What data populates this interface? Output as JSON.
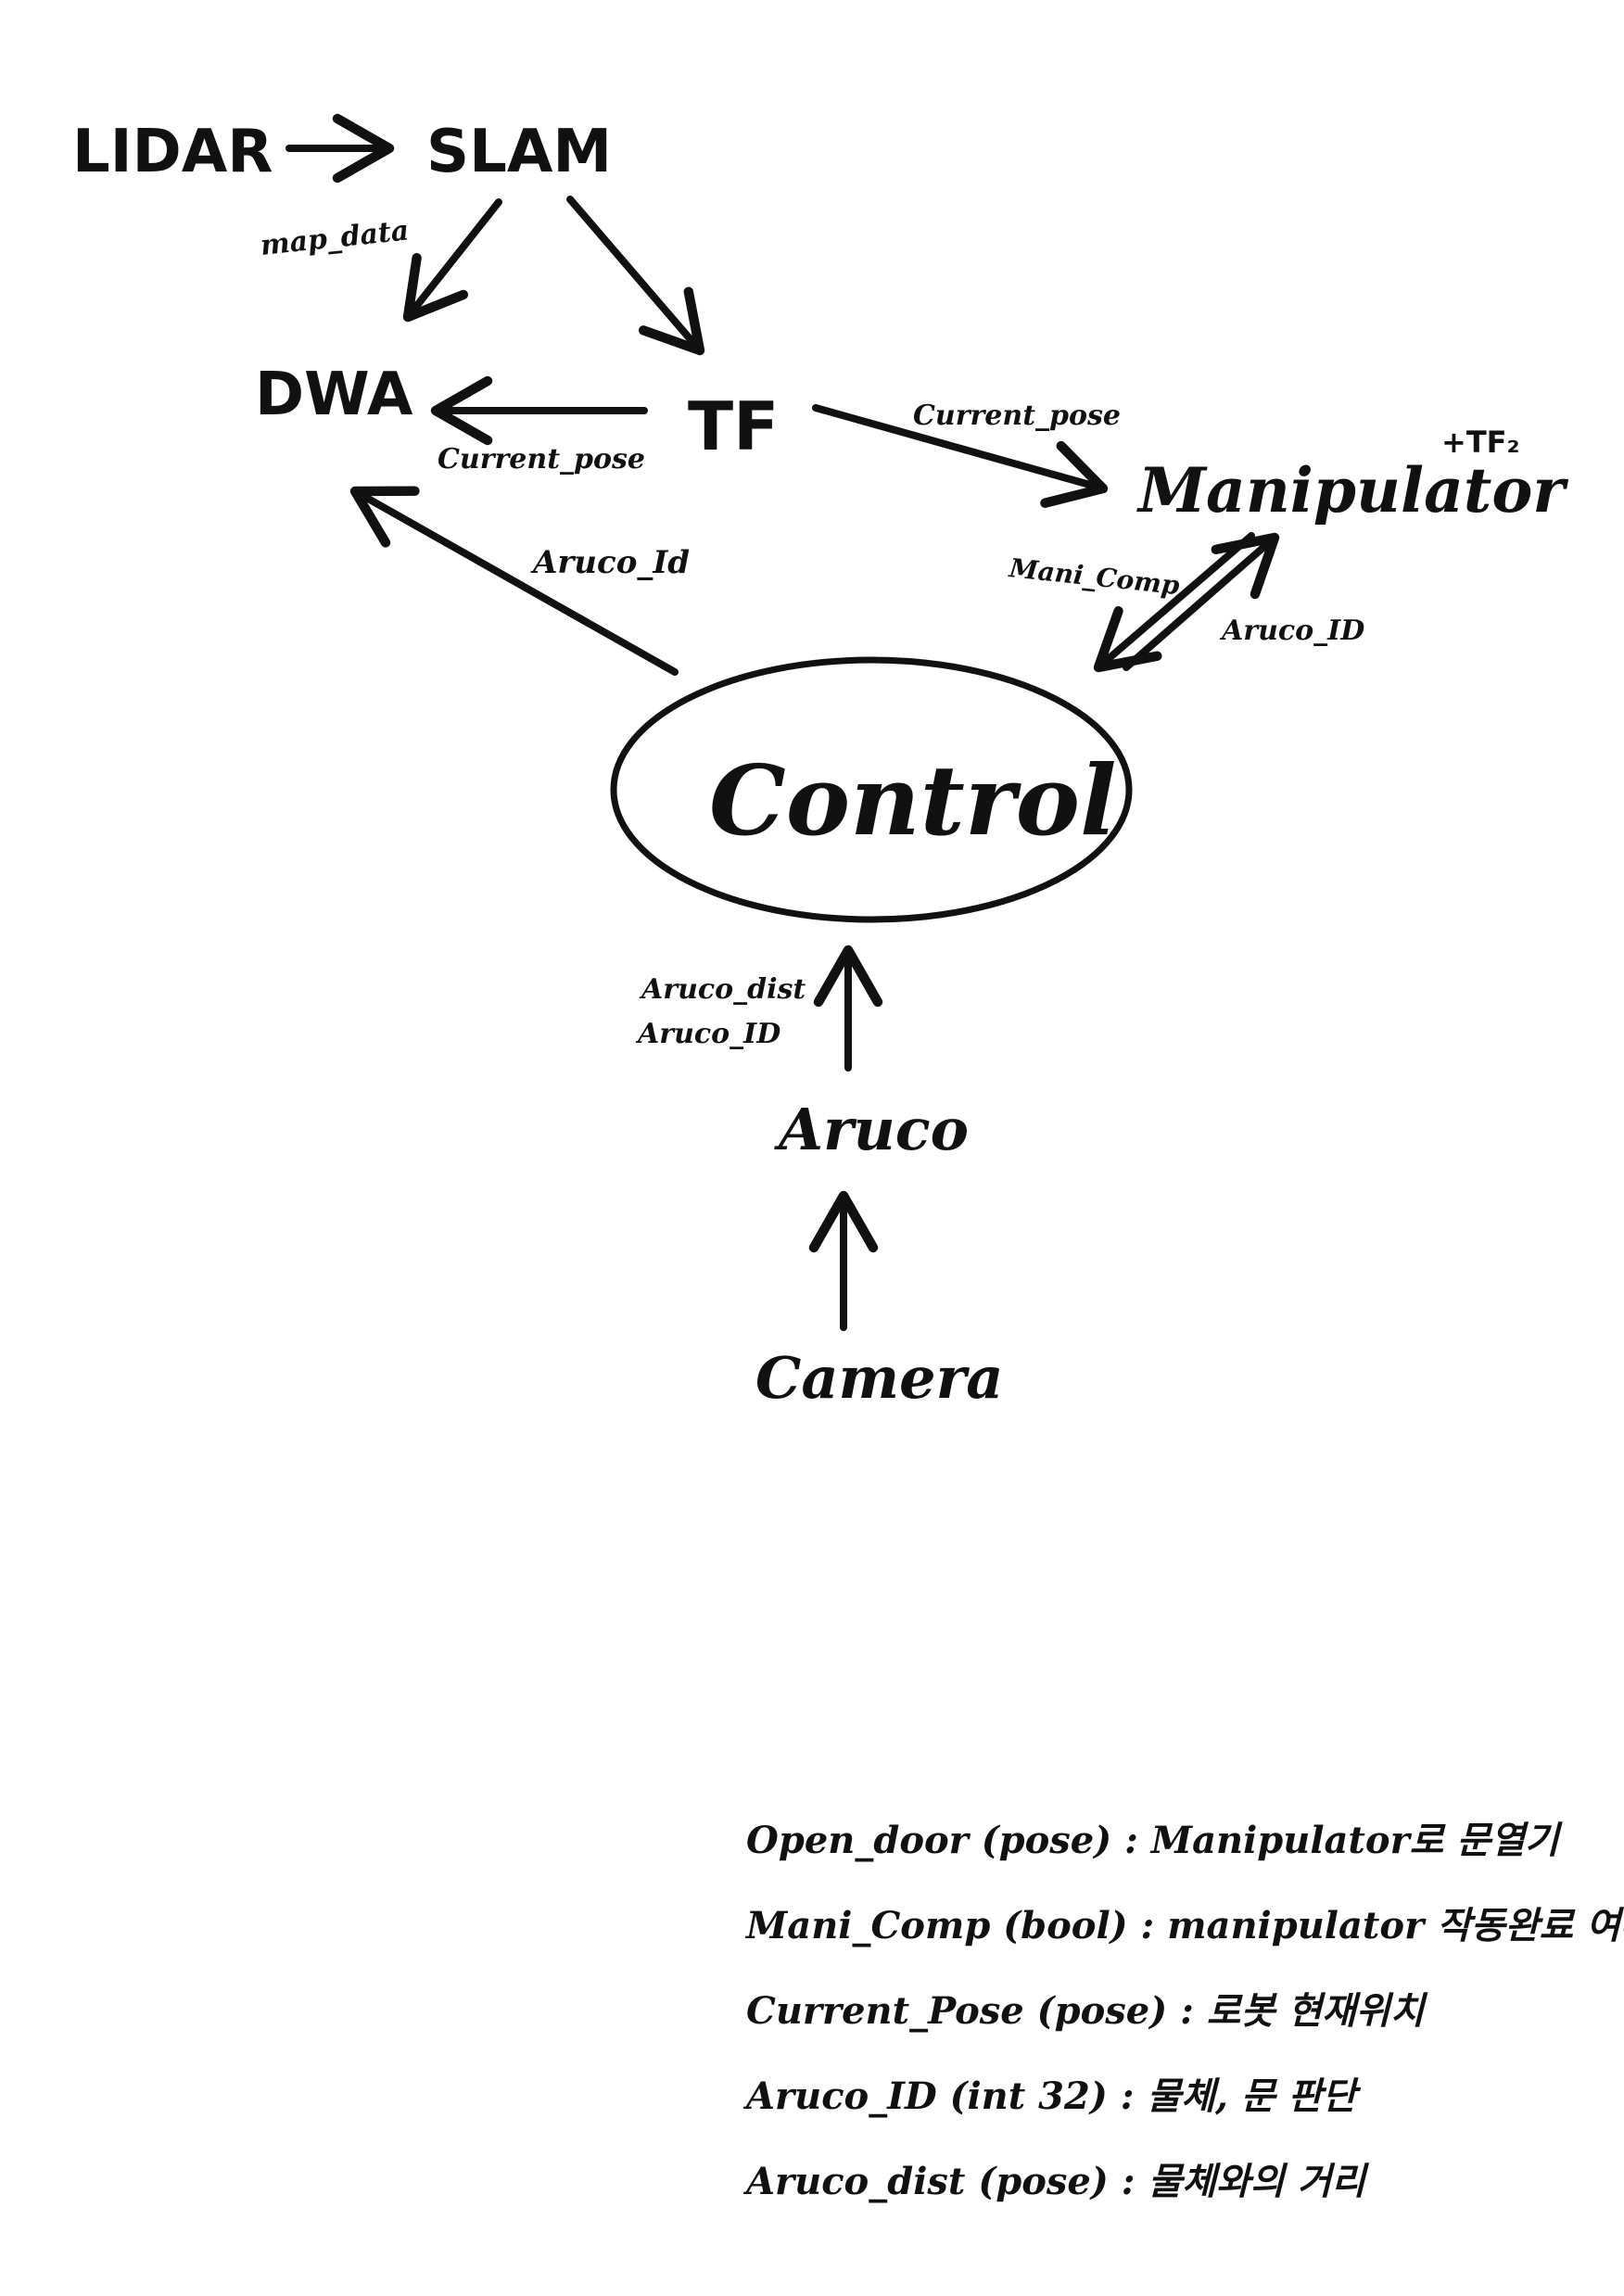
{
  "nodes": {
    "lidar": "LIDAR",
    "slam": "SLAM",
    "dwa": "DWA",
    "tf": "TF",
    "manipulator": "Manipulator",
    "manipulator_note": "+TF₂",
    "control": "Control",
    "aruco": "Aruco",
    "camera": "Camera"
  },
  "edge_labels": {
    "slam_to_dwa": "map_data",
    "tf_to_dwa": "Current_pose",
    "tf_to_manipulator": "Current_pose",
    "control_to_dwa": "Aruco_Id",
    "manipulator_to_control": "Mani_Comp",
    "control_to_manipulator": "Aruco_ID",
    "aruco_to_control_1": "Aruco_dist",
    "aruco_to_control_2": "Aruco_ID"
  },
  "legend": [
    {
      "term": "Open_door",
      "type": "(pose)",
      "sep": ":",
      "desc": "Manipulator로 문열기"
    },
    {
      "term": "Mani_Comp",
      "type": "(bool)",
      "sep": ":",
      "desc": "manipulator 작동완료 여부"
    },
    {
      "term": "Current_Pose",
      "type": "(pose)",
      "sep": ":",
      "desc": "로봇 현재위치"
    },
    {
      "term": "Aruco_ID",
      "type": "(int 32)",
      "sep": ":",
      "desc": "물체, 문 판단"
    },
    {
      "term": "Aruco_dist",
      "type": "(pose)",
      "sep": ":",
      "desc": "물체와의 거리"
    }
  ]
}
